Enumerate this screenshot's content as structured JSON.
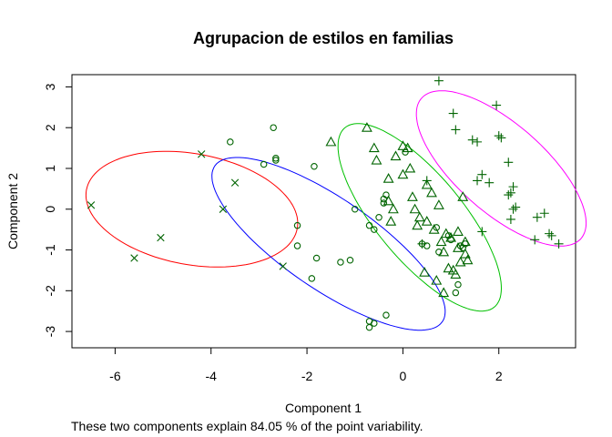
{
  "chart_data": {
    "type": "scatter",
    "title": "Agrupacion de estilos en familias",
    "xlabel": "Component 1",
    "ylabel": "Component 2",
    "xlim": [
      -6.9,
      3.6
    ],
    "ylim": [
      -3.4,
      3.3
    ],
    "xticks": [
      -6,
      -4,
      -2,
      0,
      2
    ],
    "yticks": [
      -3,
      -2,
      -1,
      0,
      1,
      2,
      3
    ],
    "footnote": "These two components explain 84.05 % of the point variability.",
    "grid": false,
    "colors": {
      "points": "#006400",
      "axis": "#000000"
    },
    "series": [
      {
        "marker": "x",
        "points": [
          [
            -6.5,
            0.1
          ],
          [
            -5.6,
            -1.2
          ],
          [
            -5.05,
            -0.7
          ],
          [
            -4.2,
            1.35
          ],
          [
            -3.75,
            0.0
          ],
          [
            -3.5,
            0.65
          ],
          [
            -2.5,
            -1.4
          ]
        ]
      },
      {
        "marker": "circle",
        "points": [
          [
            -3.6,
            1.65
          ],
          [
            -2.7,
            2.0
          ],
          [
            -2.65,
            1.25
          ],
          [
            -2.65,
            1.2
          ],
          [
            -2.9,
            1.1
          ],
          [
            -2.2,
            -0.4
          ],
          [
            -2.2,
            -0.9
          ],
          [
            -1.85,
            1.05
          ],
          [
            -1.8,
            -1.2
          ],
          [
            -1.9,
            -1.7
          ],
          [
            -1.3,
            -1.3
          ],
          [
            -1.1,
            -1.25
          ],
          [
            -1.0,
            0.0
          ],
          [
            -0.7,
            -0.4
          ],
          [
            -0.6,
            -0.5
          ],
          [
            -0.5,
            -0.2
          ],
          [
            -0.4,
            0.25
          ],
          [
            -0.4,
            0.15
          ],
          [
            -0.35,
            0.35
          ],
          [
            -0.7,
            -2.75
          ],
          [
            -0.6,
            -2.8
          ],
          [
            -0.7,
            -2.9
          ],
          [
            -0.35,
            -2.6
          ],
          [
            0.05,
            1.4
          ],
          [
            1.1,
            -2.05
          ],
          [
            1.15,
            -1.85
          ],
          [
            0.75,
            -1.05
          ],
          [
            0.7,
            -0.45
          ],
          [
            0.95,
            -0.65
          ],
          [
            1.0,
            -0.75
          ],
          [
            0.4,
            -0.85
          ],
          [
            1.2,
            -0.9
          ],
          [
            1.25,
            -0.95
          ],
          [
            1.3,
            -0.85
          ],
          [
            0.5,
            -0.9
          ]
        ]
      },
      {
        "marker": "triangle",
        "points": [
          [
            -1.5,
            1.65
          ],
          [
            -0.75,
            2.0
          ],
          [
            -0.6,
            1.5
          ],
          [
            -0.55,
            1.2
          ],
          [
            -0.3,
            0.75
          ],
          [
            -0.25,
            -0.3
          ],
          [
            -0.3,
            0.2
          ],
          [
            -0.2,
            0.0
          ],
          [
            -0.15,
            1.3
          ],
          [
            0.0,
            1.55
          ],
          [
            0.1,
            1.5
          ],
          [
            0.0,
            0.85
          ],
          [
            0.15,
            1.0
          ],
          [
            0.2,
            0.3
          ],
          [
            0.25,
            0.0
          ],
          [
            0.3,
            -0.4
          ],
          [
            0.35,
            -0.2
          ],
          [
            0.5,
            -0.3
          ],
          [
            0.5,
            0.6
          ],
          [
            0.6,
            0.4
          ],
          [
            0.65,
            -0.5
          ],
          [
            0.75,
            0.1
          ],
          [
            0.8,
            -0.8
          ],
          [
            0.85,
            -1.05
          ],
          [
            0.9,
            -0.6
          ],
          [
            1.0,
            -0.7
          ],
          [
            0.95,
            -1.45
          ],
          [
            1.15,
            -0.55
          ],
          [
            1.25,
            0.3
          ],
          [
            1.3,
            -1.1
          ],
          [
            1.35,
            -1.25
          ],
          [
            1.15,
            -0.95
          ],
          [
            0.45,
            -1.55
          ],
          [
            0.7,
            -1.75
          ],
          [
            0.85,
            -2.05
          ],
          [
            1.05,
            -1.5
          ],
          [
            1.1,
            -1.6
          ],
          [
            1.2,
            -1.3
          ],
          [
            1.3,
            -0.8
          ]
        ]
      },
      {
        "marker": "plus",
        "points": [
          [
            0.75,
            3.15
          ],
          [
            1.05,
            2.35
          ],
          [
            1.1,
            1.95
          ],
          [
            1.45,
            1.7
          ],
          [
            1.55,
            1.65
          ],
          [
            1.55,
            0.7
          ],
          [
            1.65,
            0.85
          ],
          [
            1.8,
            0.65
          ],
          [
            1.95,
            2.55
          ],
          [
            2.0,
            1.8
          ],
          [
            2.05,
            1.75
          ],
          [
            2.2,
            1.15
          ],
          [
            2.2,
            0.35
          ],
          [
            2.25,
            0.4
          ],
          [
            2.3,
            0.55
          ],
          [
            2.35,
            0.05
          ],
          [
            2.3,
            0.0
          ],
          [
            2.25,
            -0.25
          ],
          [
            1.65,
            -0.55
          ],
          [
            2.75,
            -0.75
          ],
          [
            2.8,
            -0.2
          ],
          [
            2.95,
            -0.1
          ],
          [
            3.05,
            -0.6
          ],
          [
            3.1,
            -0.65
          ],
          [
            3.25,
            -0.85
          ],
          [
            0.5,
            0.7
          ],
          [
            0.4,
            -0.85
          ]
        ]
      }
    ],
    "ellipses": [
      {
        "color": "#ff0000",
        "center": [
          -4.4,
          0.0
        ],
        "semi_axes": [
          2.25,
          1.35
        ],
        "angle_deg": -14
      },
      {
        "color": "#0000ff",
        "center": [
          -1.55,
          -0.85
        ],
        "semi_axes": [
          3.05,
          1.05
        ],
        "angle_deg": -40
      },
      {
        "color": "#00c000",
        "center": [
          0.35,
          -0.2
        ],
        "semi_axes": [
          2.7,
          0.95
        ],
        "angle_deg": -56
      },
      {
        "color": "#ff00ff",
        "center": [
          2.05,
          1.0
        ],
        "semi_axes": [
          2.4,
          1.0
        ],
        "angle_deg": -48
      }
    ]
  }
}
